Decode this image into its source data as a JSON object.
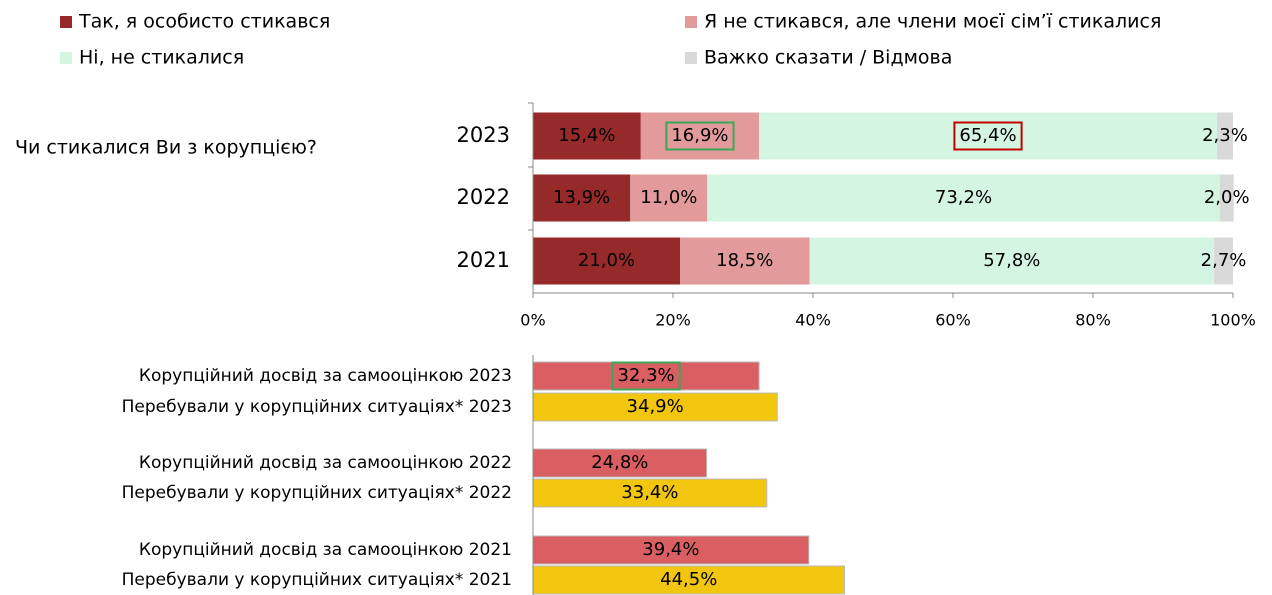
{
  "chart_data": [
    {
      "type": "stacked_barh",
      "title": "Чи стикалися Ви з корупцією?",
      "categories": [
        "2023",
        "2022",
        "2021"
      ],
      "series": [
        {
          "name": "Так, я особисто стикався",
          "color": "#962a2b",
          "values": [
            15.4,
            13.9,
            21.0
          ],
          "value_labels": [
            "15,4%",
            "13,9%",
            "21,0%"
          ],
          "label_boxes": [
            null,
            null,
            null
          ]
        },
        {
          "name": "Я не стикався, але члени моєї сім’ї стикалися",
          "color": "#e39a9a",
          "values": [
            16.9,
            11.0,
            18.5
          ],
          "value_labels": [
            "16,9%",
            "11,0%",
            "18,5%"
          ],
          "label_boxes": [
            "#3aa85a",
            null,
            null
          ]
        },
        {
          "name": "Ні, не стикалися",
          "color": "#d5f5e3",
          "values": [
            65.4,
            73.2,
            57.8
          ],
          "value_labels": [
            "65,4%",
            "73,2%",
            "57,8%"
          ],
          "label_boxes": [
            "#c00000",
            null,
            null
          ]
        },
        {
          "name": "Важко сказати / Відмова",
          "color": "#d9d9d9",
          "values": [
            2.3,
            2.0,
            2.7
          ],
          "value_labels": [
            "2,3%",
            "2,0%",
            "2,7%"
          ],
          "label_boxes": [
            null,
            null,
            null
          ]
        }
      ],
      "xlim": [
        0,
        100
      ],
      "xticks": [
        {
          "value": 0,
          "label": "0%"
        },
        {
          "value": 20,
          "label": "20%"
        },
        {
          "value": 40,
          "label": "40%"
        },
        {
          "value": 60,
          "label": "60%"
        },
        {
          "value": 80,
          "label": "80%"
        },
        {
          "value": 100,
          "label": "100%"
        }
      ]
    },
    {
      "type": "barh",
      "categories": [
        "Корупційний досвід за самооцінкою 2023",
        "Перебували у корупційних ситуаціях* 2023",
        "Корупційний досвід за самооцінкою 2022",
        "Перебували у корупційних ситуаціях* 2022",
        "Корупційний досвід за самооцінкою 2021",
        "Перебували у корупційних ситуаціях* 2021"
      ],
      "values": [
        32.3,
        34.9,
        24.8,
        33.4,
        39.4,
        44.5
      ],
      "value_labels": [
        "32,3%",
        "34,9%",
        "24,8%",
        "33,4%",
        "39,4%",
        "44,5%"
      ],
      "colors": [
        "#d95f63",
        "#f2c50f",
        "#d95f63",
        "#f2c50f",
        "#d95f63",
        "#f2c50f"
      ],
      "label_boxes": [
        "#3aa85a",
        null,
        null,
        null,
        null,
        null
      ],
      "xlim": [
        0,
        100
      ]
    }
  ]
}
